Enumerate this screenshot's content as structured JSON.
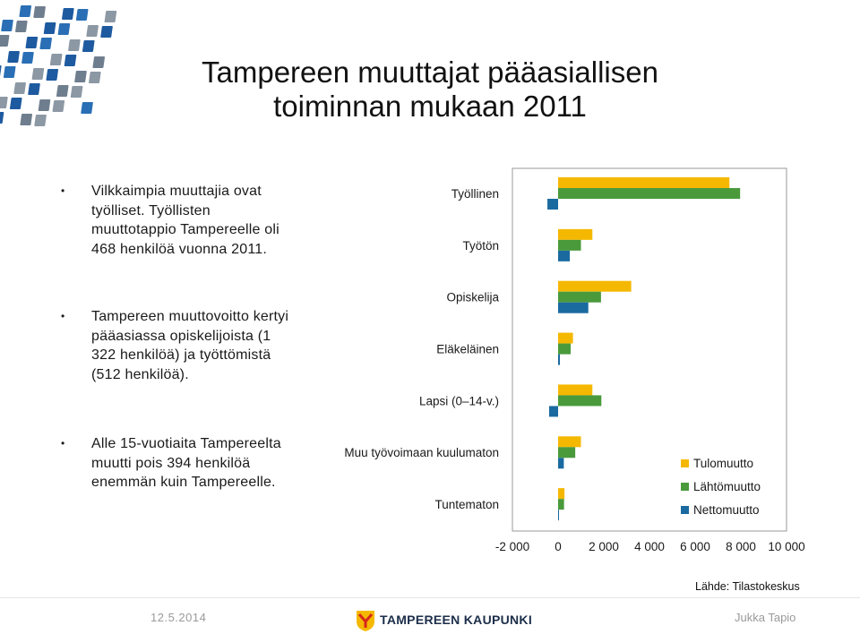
{
  "title": "Tampereen muuttajat pääasiallisen toiminnan mukaan 2011",
  "bullets": [
    "Vilkkaimpia muuttajia ovat työlliset. Työllisten muuttotappio Tampereelle oli 468 henkilöä vuonna 2011.",
    "Tampereen muuttovoitto kertyi pääasiassa opiskelijoista (1 322 henkilöä) ja työttömistä (512 henkilöä).",
    "Alle 15-vuotiaita Tampereelta muutti pois 394 henkilöä enemmän kuin Tampereelle."
  ],
  "chart_data": {
    "type": "bar",
    "orientation": "horizontal",
    "categories": [
      "Työllinen",
      "Työtön",
      "Opiskelija",
      "Eläkeläinen",
      "Lapsi (0–14-v.)",
      "Muu työvoimaan kuulumaton",
      "Tuntematon"
    ],
    "series": [
      {
        "name": "Tulomuutto",
        "color": "#F5B800",
        "values": [
          7500,
          1500,
          3200,
          650,
          1500,
          1000,
          280
        ]
      },
      {
        "name": "Lähtömuutto",
        "color": "#4A9A3C",
        "values": [
          7968,
          1000,
          1878,
          550,
          1894,
          750,
          260
        ]
      },
      {
        "name": "Nettomuutto",
        "color": "#1A6AA0",
        "values": [
          -468,
          512,
          1322,
          80,
          -394,
          250,
          20
        ]
      }
    ],
    "xlim": [
      -2000,
      10000
    ],
    "xticks": [
      "-2 000",
      "0",
      "2 000",
      "4 000",
      "6 000",
      "8 000",
      "10 000"
    ],
    "legend_position": "right"
  },
  "source": "Lähde: Tilastokeskus",
  "footer": {
    "date": "12.5.2014",
    "brand": "TAMPEREEN KAUPUNKI",
    "author": "Jukka Tapio"
  }
}
